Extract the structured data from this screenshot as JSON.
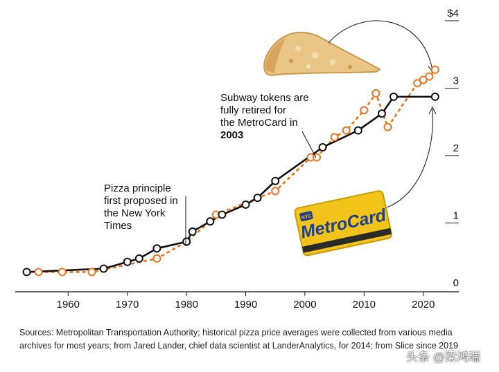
{
  "chart_data": {
    "type": "line",
    "xlim": [
      1952,
      2026
    ],
    "ylim": [
      0,
      4
    ],
    "x_ticks": [
      1960,
      1970,
      1980,
      1990,
      2000,
      2010,
      2020
    ],
    "y_ticks": [
      {
        "value": 0,
        "label": "0"
      },
      {
        "value": 1,
        "label": "1"
      },
      {
        "value": 2,
        "label": "2"
      },
      {
        "value": 3,
        "label": "3"
      },
      {
        "value": 4,
        "label": "$4"
      }
    ],
    "series": [
      {
        "name": "Subway fare",
        "color": "#111111",
        "style": "solid",
        "points": [
          [
            1953,
            0.15
          ],
          [
            1966,
            0.2
          ],
          [
            1970,
            0.3
          ],
          [
            1972,
            0.35
          ],
          [
            1975,
            0.5
          ],
          [
            1980,
            0.6
          ],
          [
            1981,
            0.75
          ],
          [
            1984,
            0.9
          ],
          [
            1986,
            1.0
          ],
          [
            1990,
            1.15
          ],
          [
            1992,
            1.25
          ],
          [
            1995,
            1.5
          ],
          [
            2003,
            2.0
          ],
          [
            2009,
            2.25
          ],
          [
            2013,
            2.5
          ],
          [
            2015,
            2.75
          ],
          [
            2022,
            2.75
          ]
        ]
      },
      {
        "name": "Pizza slice price",
        "color": "#e8731e",
        "style": "dashed",
        "points": [
          [
            1955,
            0.15
          ],
          [
            1959,
            0.15
          ],
          [
            1964,
            0.15
          ],
          [
            1975,
            0.35
          ],
          [
            1980,
            0.6
          ],
          [
            1984,
            0.9
          ],
          [
            1985,
            1.0
          ],
          [
            1995,
            1.35
          ],
          [
            2001,
            1.85
          ],
          [
            2002,
            1.85
          ],
          [
            2005,
            2.15
          ],
          [
            2007,
            2.25
          ],
          [
            2010,
            2.55
          ],
          [
            2012,
            2.8
          ],
          [
            2014,
            2.3
          ],
          [
            2019,
            2.95
          ],
          [
            2020,
            3.0
          ],
          [
            2021,
            3.05
          ],
          [
            2022,
            3.15
          ]
        ]
      }
    ],
    "annotations": [
      {
        "name": "annotation-pizza-principle",
        "lines": [
          "Pizza principle",
          "first proposed in",
          "the New York",
          "Times"
        ],
        "bold_line": ""
      },
      {
        "name": "annotation-subway-tokens",
        "lines": [
          "Subway tokens are",
          "fully retired for",
          "the MetroCard in"
        ],
        "bold_line": "2003"
      }
    ]
  },
  "images": {
    "metrocard_text": "MetroCard",
    "metrocard_badge": "NYC"
  },
  "sources": "Sources: Metropolitan Transportation Authority; historical pizza price averages were collected from various media archives for most years; from Jared Lander, chief data scientist at LanderAnalytics, for 2014; from Slice since 2019",
  "watermark": "头条 @梁鸿瑞"
}
